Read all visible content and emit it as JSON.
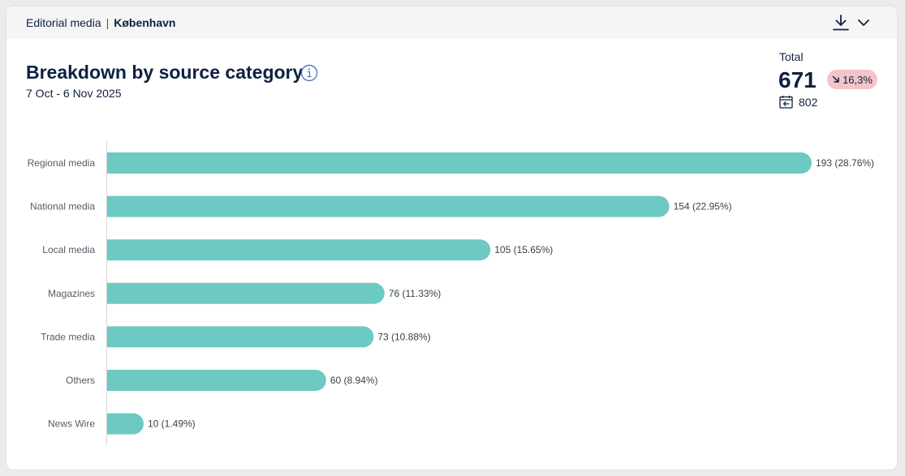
{
  "header": {
    "section": "Editorial media",
    "separator": "|",
    "location": "København",
    "download_icon": "download-icon",
    "expand_icon": "chevron-down-icon"
  },
  "widget": {
    "title": "Breakdown by source category",
    "info_icon": "info-icon",
    "date_range": "7 Oct - 6 Nov 2025"
  },
  "summary": {
    "total_label": "Total",
    "total_value": "671",
    "change": "16,3%",
    "change_direction": "down",
    "previous_icon": "calendar-compare-icon",
    "previous_value": "802"
  },
  "colors": {
    "bar": "#6ccac3",
    "badge_negative": "#f4c4cb",
    "text": "#0f2140"
  },
  "chart_data": {
    "type": "bar",
    "orientation": "horizontal",
    "categories": [
      "Regional media",
      "National media",
      "Local media",
      "Magazines",
      "Trade media",
      "Others",
      "News Wire"
    ],
    "values": [
      193,
      154,
      105,
      76,
      73,
      60,
      10
    ],
    "data_labels": [
      "193 (28.76%)",
      "154 (22.95%)",
      "105 (15.65%)",
      "76 (11.33%)",
      "73 (10.88%)",
      "60 (8.94%)",
      "10 (1.49%)"
    ],
    "xlim": [
      0,
      193
    ],
    "grid": false,
    "legend": "none"
  }
}
